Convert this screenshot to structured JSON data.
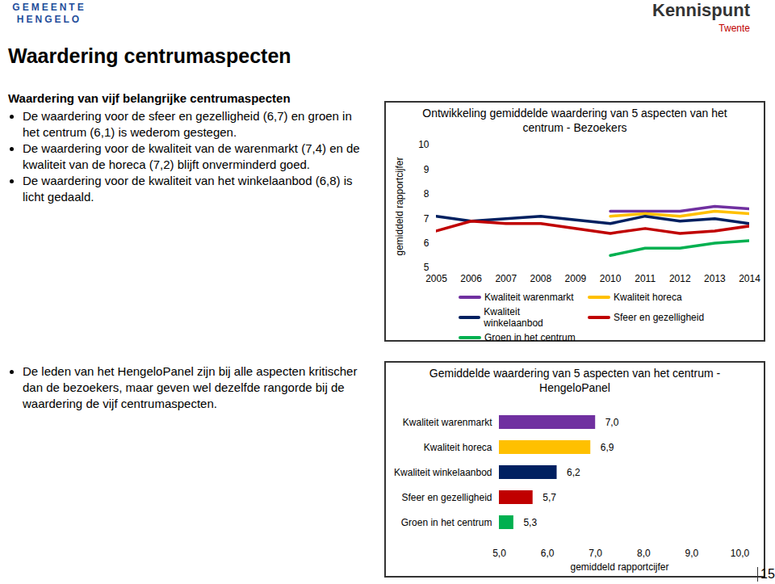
{
  "page": {
    "title": "Waardering centrumaspecten",
    "logo_left": [
      "GEMEENTE",
      "HENGELO"
    ],
    "logo_right": [
      "Kennis",
      "punt",
      "Twente"
    ],
    "intro_heading": "Waardering van vijf belangrijke centrumaspecten",
    "bullets_top": [
      "De waardering voor de sfeer en gezelligheid (6,7) en groen in het centrum (6,1) is wederom gestegen.",
      "De waardering voor de kwaliteit van de warenmarkt (7,4) en de kwaliteit van de horeca (7,2) blijft onverminderd goed.",
      "De waardering voor de kwaliteit van het winkelaanbod (6,8) is licht gedaald."
    ],
    "bullets_bottom": [
      "De leden van het HengeloPanel zijn bij alle aspecten kritischer dan de bezoekers, maar geven wel dezelfde rangorde bij de waardering de vijf centrumaspecten."
    ],
    "page_number": "15"
  },
  "chart_data": [
    {
      "type": "line",
      "title": "Ontwikkeling gemiddelde waardering van 5 aspecten van het centrum - Bezoekers",
      "y_label": "gemiddeld rapportcijfer",
      "xlim": [
        2005,
        2014
      ],
      "xticks": [
        2005,
        2006,
        2007,
        2008,
        2009,
        2010,
        2011,
        2012,
        2013,
        2014
      ],
      "ylim": [
        5,
        10
      ],
      "yticks": [
        5,
        6,
        7,
        8,
        9,
        10
      ],
      "grid": false,
      "legend": "bottom",
      "series": [
        {
          "name": "Kwaliteit warenmarkt",
          "color": "#7030a0",
          "x": [
            2010,
            2011,
            2012,
            2013,
            2014
          ],
          "values": [
            7.3,
            7.3,
            7.3,
            7.5,
            7.4
          ]
        },
        {
          "name": "Kwaliteit horeca",
          "color": "#ffc000",
          "x": [
            2010,
            2011,
            2012,
            2013,
            2014
          ],
          "values": [
            7.1,
            7.2,
            7.1,
            7.3,
            7.2
          ]
        },
        {
          "name": "Kwaliteit winkelaanbod",
          "color": "#002060",
          "x": [
            2005,
            2006,
            2007,
            2008,
            2010,
            2011,
            2012,
            2013,
            2014
          ],
          "values": [
            7.1,
            6.9,
            7.0,
            7.1,
            6.8,
            7.1,
            6.9,
            7.0,
            6.8
          ]
        },
        {
          "name": "Sfeer en gezelligheid",
          "color": "#c00000",
          "x": [
            2005,
            2006,
            2007,
            2008,
            2010,
            2011,
            2012,
            2013,
            2014
          ],
          "values": [
            6.5,
            6.9,
            6.8,
            6.8,
            6.4,
            6.6,
            6.4,
            6.5,
            6.7
          ]
        },
        {
          "name": "Groen in het centrum",
          "color": "#00b050",
          "x": [
            2010,
            2011,
            2012,
            2013,
            2014
          ],
          "values": [
            5.5,
            5.8,
            5.8,
            6.0,
            6.1
          ]
        }
      ]
    },
    {
      "type": "bar",
      "orientation": "horizontal",
      "title": "Gemiddelde waardering van 5 aspecten van het centrum - HengeloPanel",
      "x_label": "gemiddeld rapportcijfer",
      "categories": [
        "Kwaliteit warenmarkt",
        "Kwaliteit horeca",
        "Kwaliteit winkelaanbod",
        "Sfeer en gezelligheid",
        "Groen in het centrum"
      ],
      "values": [
        7.0,
        6.9,
        6.2,
        5.7,
        5.3
      ],
      "value_labels": [
        "7,0",
        "6,9",
        "6,2",
        "5,7",
        "5,3"
      ],
      "colors": [
        "#7030a0",
        "#ffc000",
        "#002060",
        "#c00000",
        "#00b050"
      ],
      "data_labels": true,
      "grid": false,
      "xlim": [
        5,
        10
      ],
      "xticks": [
        {
          "value": 5,
          "label": "5,0"
        },
        {
          "value": 6,
          "label": "6,0"
        },
        {
          "value": 7,
          "label": "7,0"
        },
        {
          "value": 8,
          "label": "8,0"
        },
        {
          "value": 9,
          "label": "9,0"
        },
        {
          "value": 10,
          "label": "10,0"
        }
      ]
    }
  ]
}
